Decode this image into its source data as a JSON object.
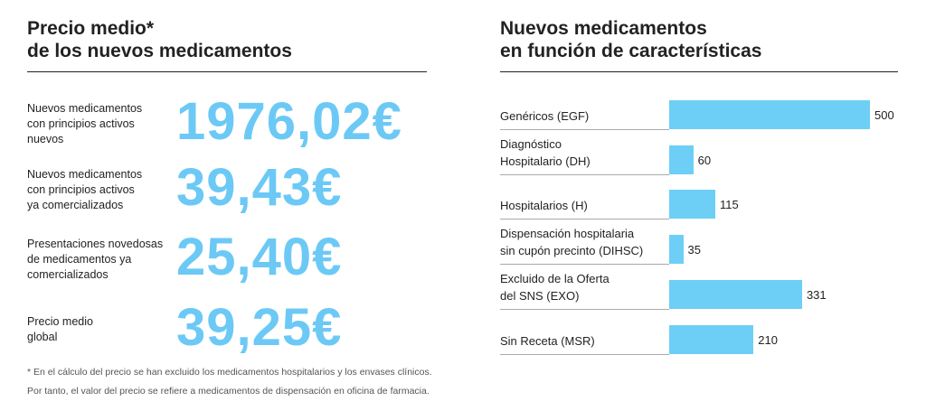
{
  "prices": {
    "title": [
      "Precio medio*",
      "de los nuevos medicamentos"
    ],
    "rows": [
      {
        "label": "Nuevos medicamentos\ncon principios activos\nnuevos",
        "price": "1976,02€"
      },
      {
        "label": "Nuevos medicamentos\ncon principios activos\nya comercializados",
        "price": "39,43€"
      },
      {
        "label": "Presentaciones novedosas\nde medicamentos ya\ncomercializados",
        "price": "25,40€"
      },
      {
        "label": "Precio medio\nglobal",
        "price": "39,25€"
      }
    ],
    "footnote": [
      "* En el cálculo del precio se han excluido los medicamentos hospitalarios y los envases clínicos.",
      "Por tanto, el valor del precio se refiere a medicamentos de dispensación en oficina de farmacia."
    ]
  },
  "chart_data": {
    "type": "bar",
    "orientation": "horizontal",
    "title": [
      "Nuevos medicamentos",
      "en función de características"
    ],
    "categories": [
      "Genéricos (EGF)",
      "Diagnóstico\nHospitalario (DH)",
      "Hospitalarios (H)",
      "Dispensación hospitalaria\nsin cupón precinto (DIHSC)",
      "Excluido de la Oferta\ndel SNS (EXO)",
      "Sin Receta (MSR)"
    ],
    "values": [
      500,
      60,
      115,
      35,
      331,
      210
    ],
    "color": "#6dcff6",
    "xlim": [
      0,
      500
    ]
  }
}
